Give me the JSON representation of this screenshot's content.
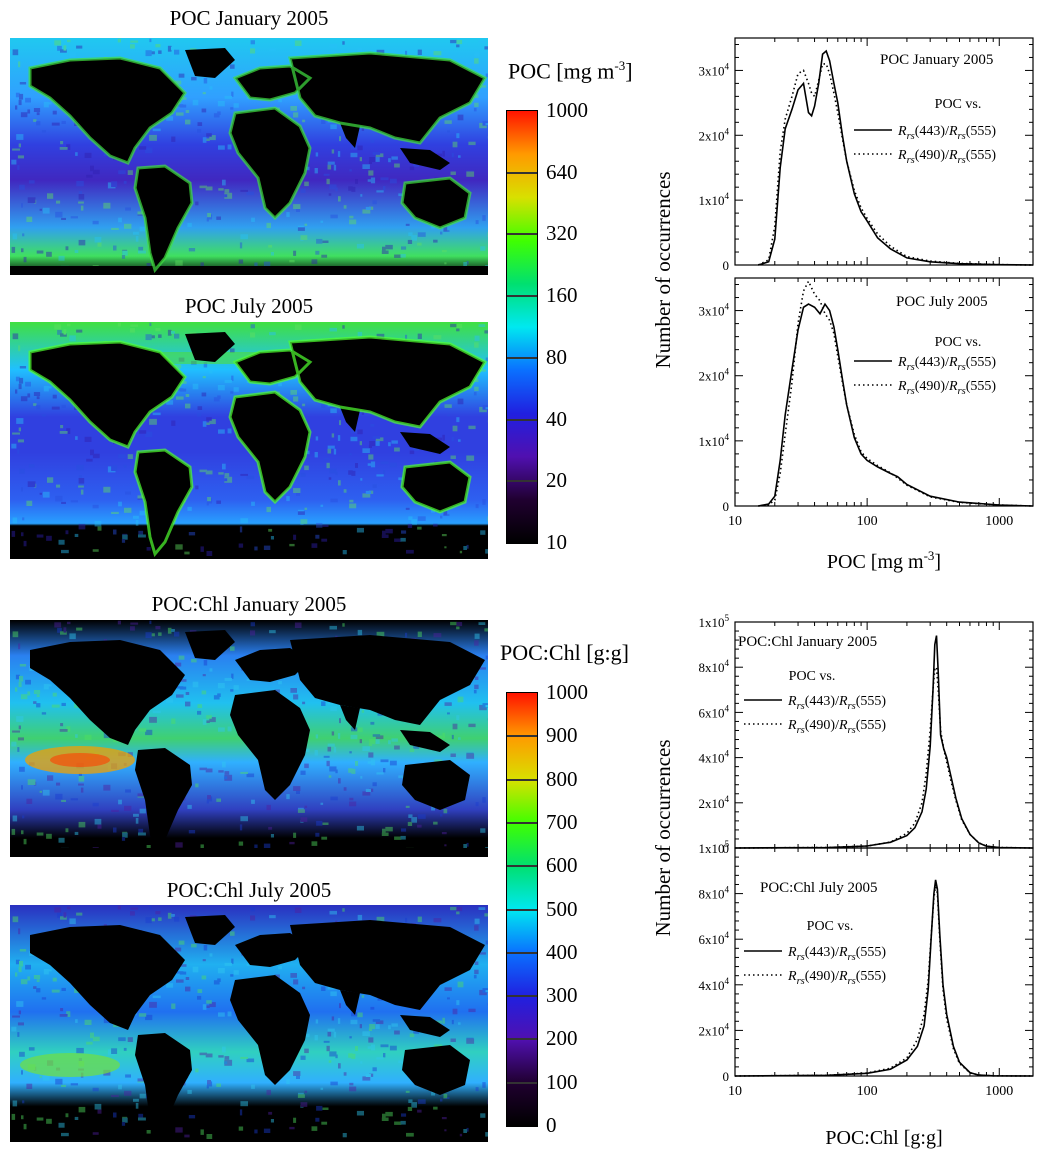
{
  "maps": [
    {
      "title": "POC  January 2005"
    },
    {
      "title": "POC  July 2005"
    },
    {
      "title": "POC:Chl  January 2005"
    },
    {
      "title": "POC:Chl  July 2005"
    }
  ],
  "colorbars": [
    {
      "title_main": "POC [mg m",
      "title_sup": "-3",
      "title_end": "]",
      "ticks": [
        "1000",
        "640",
        "320",
        "160",
        "80",
        "40",
        "20",
        "10"
      ]
    },
    {
      "title_main": "POC:Chl [g:g]",
      "title_sup": "",
      "title_end": "",
      "ticks": [
        "1000",
        "900",
        "800",
        "700",
        "600",
        "500",
        "400",
        "300",
        "200",
        "100",
        "0"
      ]
    }
  ],
  "colormap": [
    "#ff1400",
    "#ff9a00",
    "#d8e000",
    "#40ff00",
    "#00e070",
    "#00e8f0",
    "#0a70ff",
    "#2020e0",
    "#5010b0",
    "#200030",
    "#000000"
  ],
  "chart_data": [
    {
      "type": "line",
      "title": "POC  January 2005",
      "ylabel": "Number of occurrences",
      "xlabel": "",
      "xscale": "log",
      "xlim": [
        10,
        1800
      ],
      "ylim": [
        0,
        35000
      ],
      "yticks": [
        0,
        10000,
        20000,
        30000
      ],
      "ytick_labels": [
        "0",
        "1x10^4",
        "2x10^4",
        "3x10^4"
      ],
      "legend_header": "POC  vs.",
      "series": [
        {
          "name": "Rrs(443)/Rrs(555)",
          "style": "solid",
          "x": [
            15,
            18,
            20,
            22,
            24,
            27,
            30,
            33,
            36,
            38,
            40,
            43,
            46,
            49,
            52,
            56,
            60,
            65,
            70,
            80,
            90,
            100,
            120,
            150,
            200,
            300,
            500,
            1000,
            1800
          ],
          "y": [
            0,
            500,
            4000,
            15000,
            21000,
            24000,
            27000,
            28000,
            23500,
            23000,
            24500,
            28000,
            32500,
            33000,
            31500,
            28000,
            25000,
            20000,
            16000,
            11000,
            8200,
            6800,
            4200,
            2500,
            1100,
            500,
            200,
            50,
            0
          ]
        },
        {
          "name": "Rrs(490)/Rrs(555)",
          "style": "dotted",
          "x": [
            15,
            18,
            20,
            22,
            24,
            27,
            30,
            33,
            36,
            38,
            40,
            43,
            46,
            49,
            52,
            56,
            60,
            65,
            70,
            80,
            90,
            100,
            120,
            150,
            200,
            300,
            500,
            1000,
            1800
          ],
          "y": [
            0,
            800,
            6000,
            17500,
            22500,
            26000,
            29500,
            30000,
            28000,
            26500,
            26000,
            28500,
            31000,
            31000,
            29500,
            26500,
            23500,
            19500,
            16000,
            11500,
            8800,
            7200,
            4800,
            2900,
            1300,
            600,
            250,
            60,
            0
          ]
        }
      ]
    },
    {
      "type": "line",
      "title": "POC  July 2005",
      "ylabel": "Number of occurrences",
      "xlabel": "POC  [mg m^-3]",
      "xscale": "log",
      "xlim": [
        10,
        1800
      ],
      "ylim": [
        0,
        35000
      ],
      "yticks": [
        0,
        10000,
        20000,
        30000
      ],
      "ytick_labels": [
        "0",
        "1x10^4",
        "2x10^4",
        "3x10^4"
      ],
      "xtick_labels": [
        "10",
        "100",
        "1000"
      ],
      "legend_header": "POC  vs.",
      "series": [
        {
          "name": "Rrs(443)/Rrs(555)",
          "style": "solid",
          "x": [
            15,
            18,
            20,
            22,
            24,
            27,
            30,
            33,
            36,
            40,
            44,
            48,
            52,
            56,
            60,
            65,
            70,
            80,
            90,
            100,
            120,
            150,
            170,
            200,
            300,
            500,
            1000,
            1800
          ],
          "y": [
            0,
            300,
            1500,
            7000,
            14000,
            21000,
            27000,
            30500,
            31000,
            30500,
            29500,
            31000,
            30000,
            27500,
            24000,
            19500,
            15500,
            10500,
            8000,
            7000,
            6000,
            5000,
            4500,
            3300,
            1500,
            600,
            150,
            0
          ]
        },
        {
          "name": "Rrs(490)/Rrs(555)",
          "style": "dotted",
          "x": [
            15,
            18,
            20,
            22,
            24,
            27,
            30,
            33,
            36,
            40,
            44,
            48,
            52,
            56,
            60,
            65,
            70,
            80,
            90,
            100,
            120,
            150,
            170,
            200,
            300,
            500,
            1000,
            1800
          ],
          "y": [
            0,
            200,
            900,
            5000,
            11000,
            19000,
            28000,
            33000,
            34500,
            32500,
            31500,
            29500,
            28500,
            26500,
            23000,
            19000,
            15500,
            11000,
            8300,
            7300,
            6200,
            5100,
            4300,
            3200,
            1400,
            550,
            150,
            0
          ]
        }
      ]
    },
    {
      "type": "line",
      "title": "POC:Chl  January 2005",
      "ylabel": "Number of occurrences",
      "xlabel": "",
      "xscale": "log",
      "xlim": [
        10,
        1800
      ],
      "ylim": [
        0,
        100000
      ],
      "yticks": [
        0,
        20000,
        40000,
        60000,
        80000,
        100000
      ],
      "ytick_labels": [
        "0",
        "2x10^4",
        "4x10^4",
        "6x10^4",
        "8x10^4",
        "1x10^5"
      ],
      "legend_header": "POC  vs.",
      "series": [
        {
          "name": "Rrs(443)/Rrs(555)",
          "style": "solid",
          "x": [
            10,
            50,
            100,
            150,
            200,
            230,
            260,
            280,
            300,
            315,
            325,
            335,
            345,
            360,
            380,
            400,
            430,
            470,
            520,
            600,
            700,
            800,
            1000,
            1800
          ],
          "y": [
            0,
            200,
            900,
            2500,
            5500,
            9000,
            16000,
            26000,
            45000,
            70000,
            90000,
            94000,
            78000,
            50000,
            44000,
            40000,
            32000,
            22000,
            13000,
            6000,
            2200,
            800,
            200,
            0
          ]
        },
        {
          "name": "Rrs(490)/Rrs(555)",
          "style": "dotted",
          "x": [
            10,
            50,
            100,
            150,
            200,
            230,
            260,
            280,
            300,
            315,
            325,
            335,
            345,
            360,
            380,
            400,
            430,
            470,
            520,
            600,
            700,
            800,
            1000,
            1800
          ],
          "y": [
            0,
            200,
            900,
            2600,
            6500,
            11000,
            20000,
            33000,
            52000,
            70000,
            79000,
            80000,
            70000,
            52000,
            44000,
            38000,
            30000,
            21000,
            12500,
            6000,
            2300,
            800,
            200,
            0
          ]
        }
      ]
    },
    {
      "type": "line",
      "title": "POC:Chl  July 2005",
      "ylabel": "Number of occurrences",
      "xlabel": "POC:Chl  [g:g]",
      "xscale": "log",
      "xlim": [
        10,
        1800
      ],
      "ylim": [
        0,
        100000
      ],
      "yticks": [
        0,
        20000,
        40000,
        60000,
        80000,
        100000
      ],
      "ytick_labels": [
        "0",
        "2x10^4",
        "4x10^4",
        "6x10^4",
        "8x10^4",
        "1x10^5"
      ],
      "xtick_labels": [
        "10",
        "100",
        "1000"
      ],
      "legend_header": "POC  vs.",
      "series": [
        {
          "name": "Rrs(443)/Rrs(555)",
          "style": "solid",
          "x": [
            10,
            50,
            100,
            150,
            200,
            240,
            270,
            290,
            305,
            320,
            330,
            340,
            355,
            375,
            400,
            450,
            500,
            600,
            700,
            900,
            1800
          ],
          "y": [
            0,
            300,
            1200,
            3000,
            7000,
            13000,
            22000,
            38000,
            60000,
            80000,
            86000,
            82000,
            62000,
            40000,
            27000,
            13000,
            6000,
            1500,
            400,
            100,
            0
          ]
        },
        {
          "name": "Rrs(490)/Rrs(555)",
          "style": "dotted",
          "x": [
            10,
            50,
            100,
            150,
            200,
            240,
            270,
            290,
            305,
            320,
            330,
            340,
            355,
            375,
            400,
            450,
            500,
            600,
            700,
            900,
            1800
          ],
          "y": [
            0,
            300,
            1300,
            3400,
            8000,
            16000,
            27000,
            42000,
            61000,
            78000,
            84000,
            80000,
            60000,
            38000,
            25000,
            12000,
            5500,
            1400,
            400,
            100,
            0
          ]
        }
      ]
    }
  ]
}
